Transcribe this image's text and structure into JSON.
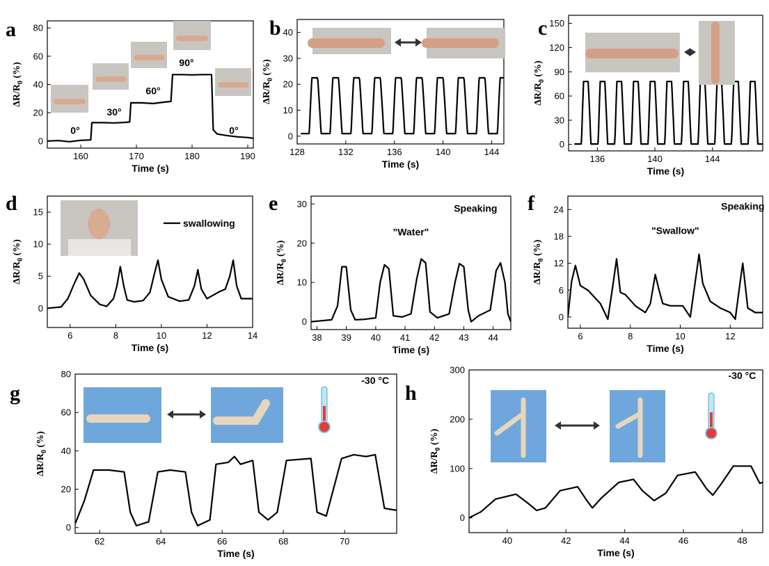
{
  "chart_data": [
    {
      "id": "a",
      "panel_label": "a",
      "type": "line",
      "xlabel": "Time (s)",
      "ylabel": "ΔR/R0 (%)",
      "xlim": [
        154,
        191
      ],
      "ylim": [
        -5,
        85
      ],
      "xticks": [
        160,
        170,
        180,
        190
      ],
      "yticks": [
        0,
        20,
        40,
        60,
        80
      ],
      "annotations": [
        {
          "text": "0°",
          "x": 159,
          "y": 5
        },
        {
          "text": "30°",
          "x": 166,
          "y": 18
        },
        {
          "text": "60°",
          "x": 173,
          "y": 33
        },
        {
          "text": "90°",
          "x": 179,
          "y": 53
        },
        {
          "text": "0°",
          "x": 187.5,
          "y": 5
        }
      ],
      "series": [
        {
          "x": [
            154,
            156,
            158,
            160,
            161.8,
            162,
            164,
            166,
            168,
            168.8,
            169,
            171,
            173,
            175,
            176.2,
            176.5,
            178,
            180,
            182,
            183.5,
            183.8,
            184.5,
            186,
            188,
            190,
            191
          ],
          "y": [
            0,
            0.3,
            -0.5,
            0.5,
            0.8,
            13,
            13,
            12.8,
            13.2,
            13.5,
            27,
            27,
            26.5,
            27.5,
            28,
            47,
            47,
            46.8,
            47,
            47,
            8,
            5,
            4,
            3,
            2.5,
            2
          ]
        }
      ]
    },
    {
      "id": "b",
      "panel_label": "b",
      "type": "line",
      "xlabel": "Time (s)",
      "ylabel": "ΔR/R0 (%)",
      "xlim": [
        128,
        145
      ],
      "ylim": [
        -3,
        45
      ],
      "xticks": [
        128,
        132,
        136,
        140,
        144
      ],
      "yticks": [
        0,
        10,
        20,
        30,
        40
      ],
      "series": [
        {
          "generator": "periodic",
          "start": 128.3,
          "end": 145,
          "period": 1.72,
          "phase": 129.0,
          "low": 1.0,
          "high": 22.5
        }
      ]
    },
    {
      "id": "c",
      "panel_label": "c",
      "type": "line",
      "xlabel": "Time (s)",
      "ylabel": "ΔR/R0 (%)",
      "xlim": [
        134,
        147.5
      ],
      "ylim": [
        -8,
        160
      ],
      "xticks": [
        136,
        140,
        144
      ],
      "yticks": [
        0,
        30,
        60,
        90,
        120,
        150
      ],
      "series": [
        {
          "generator": "periodic",
          "start": 134.4,
          "end": 147.5,
          "period": 1.16,
          "phase": 134.9,
          "low": 0.5,
          "high": 78
        }
      ]
    },
    {
      "id": "d",
      "panel_label": "d",
      "type": "line",
      "xlabel": "Time (s)",
      "ylabel": "ΔR/R0 (%)",
      "xlim": [
        5,
        14
      ],
      "ylim": [
        -3,
        17.5
      ],
      "xticks": [
        6,
        8,
        10,
        12,
        14
      ],
      "yticks": [
        0,
        5,
        10,
        15
      ],
      "legend": {
        "label": "swallowing",
        "position": "top-right"
      },
      "series": [
        {
          "x": [
            5,
            5.6,
            5.9,
            6.2,
            6.4,
            6.6,
            6.9,
            7.3,
            7.6,
            7.9,
            8.05,
            8.2,
            8.35,
            8.5,
            8.8,
            9.2,
            9.5,
            9.7,
            9.85,
            10.0,
            10.3,
            10.8,
            11.2,
            11.45,
            11.6,
            11.75,
            12.0,
            12.5,
            12.8,
            13.0,
            13.15,
            13.3,
            13.5,
            14
          ],
          "y": [
            0,
            0.2,
            1.5,
            4,
            5.5,
            4.5,
            2,
            0.6,
            0.3,
            1.5,
            3.5,
            6.5,
            3.5,
            1.3,
            1,
            1.2,
            2.5,
            5.5,
            7.5,
            4.5,
            1.8,
            1.1,
            1.3,
            3.5,
            6,
            3,
            1.5,
            2.5,
            3,
            5,
            7.5,
            3.5,
            1.5,
            1.5
          ]
        }
      ]
    },
    {
      "id": "e",
      "panel_label": "e",
      "type": "line",
      "xlabel": "Time (s)",
      "ylabel": "ΔR/R0 (%)",
      "xlim": [
        37.8,
        44.6
      ],
      "ylim": [
        -2,
        32
      ],
      "xticks": [
        38,
        39,
        40,
        41,
        42,
        43,
        44
      ],
      "yticks": [
        0,
        10,
        20,
        30
      ],
      "annotations": [
        {
          "text": "Speaking",
          "x": 43.4,
          "y": 28
        },
        {
          "text": "\"Water\"",
          "x": 41.2,
          "y": 22
        }
      ],
      "series": [
        {
          "x": [
            37.8,
            38.5,
            38.7,
            38.85,
            39.0,
            39.15,
            39.3,
            39.6,
            40.0,
            40.15,
            40.3,
            40.45,
            40.6,
            40.9,
            41.2,
            41.4,
            41.55,
            41.7,
            41.85,
            42.1,
            42.5,
            42.7,
            42.85,
            43.0,
            43.15,
            43.25,
            43.5,
            43.9,
            44.1,
            44.25,
            44.4,
            44.5,
            44.6
          ],
          "y": [
            0,
            0.5,
            4,
            14,
            14,
            3,
            0.5,
            0.6,
            1,
            10,
            14.5,
            13.5,
            1.5,
            1.2,
            2,
            11,
            16,
            15,
            2.5,
            1,
            2,
            10,
            14.8,
            14,
            3,
            0,
            1.5,
            3,
            13,
            15,
            10,
            2,
            0
          ]
        }
      ]
    },
    {
      "id": "f",
      "panel_label": "f",
      "type": "line",
      "xlabel": "Time (s)",
      "ylabel": "ΔR/R0 (%)",
      "xlim": [
        5.5,
        13.3
      ],
      "ylim": [
        -2.5,
        27
      ],
      "xticks": [
        6,
        8,
        10,
        12
      ],
      "yticks": [
        0,
        6,
        12,
        18,
        24
      ],
      "annotations": [
        {
          "text": "Speaking",
          "x": 12.5,
          "y": 24
        },
        {
          "text": "\"Swallow\"",
          "x": 9.8,
          "y": 18.5
        }
      ],
      "series": [
        {
          "x": [
            5.5,
            5.65,
            5.8,
            6.0,
            6.3,
            6.8,
            7.1,
            7.3,
            7.45,
            7.6,
            7.8,
            8.2,
            8.6,
            8.8,
            9.0,
            9.15,
            9.3,
            9.6,
            10.1,
            10.4,
            10.6,
            10.75,
            10.9,
            11.2,
            11.6,
            12.0,
            12.2,
            12.4,
            12.5,
            12.7,
            13.0,
            13.3
          ],
          "y": [
            0,
            8,
            11.5,
            7,
            6,
            3,
            -0.5,
            7,
            13,
            5.5,
            5,
            2.5,
            1,
            3,
            9.5,
            6,
            3,
            2.5,
            2.5,
            0,
            8,
            14,
            7.5,
            3.5,
            2,
            1,
            -0.5,
            8,
            12,
            2,
            1,
            1
          ]
        }
      ]
    },
    {
      "id": "g",
      "panel_label": "g",
      "type": "line",
      "xlabel": "Time (s)",
      "ylabel": "ΔR/R0 (%)",
      "xlim": [
        61.2,
        71.7
      ],
      "ylim": [
        -3,
        80
      ],
      "xticks": [
        62,
        64,
        66,
        68,
        70
      ],
      "yticks": [
        0,
        20,
        40,
        60,
        80
      ],
      "annotations": [
        {
          "text": "-30 °C",
          "x": 71,
          "y": 75
        }
      ],
      "series": [
        {
          "x": [
            61.2,
            61.5,
            61.8,
            62.3,
            62.8,
            63.0,
            63.2,
            63.6,
            63.9,
            64.3,
            64.8,
            65.0,
            65.2,
            65.6,
            65.8,
            66.2,
            66.4,
            66.6,
            67.0,
            67.2,
            67.5,
            67.8,
            68.1,
            68.9,
            69.1,
            69.4,
            69.9,
            70.3,
            70.7,
            71.0,
            71.3,
            71.7
          ],
          "y": [
            2,
            14,
            30,
            30,
            29,
            8,
            1,
            3,
            29,
            30,
            29,
            8,
            1,
            4,
            33,
            34,
            37,
            33,
            35,
            8,
            4,
            8,
            35,
            36,
            8,
            6,
            36,
            38,
            37,
            38,
            10,
            9
          ]
        }
      ]
    },
    {
      "id": "h",
      "panel_label": "h",
      "type": "line",
      "xlabel": "Time (s)",
      "ylabel": "ΔR/R0 (%)",
      "xlim": [
        38.7,
        48.7
      ],
      "ylim": [
        -30,
        300
      ],
      "xticks": [
        40,
        42,
        44,
        46,
        48
      ],
      "yticks": [
        0,
        100,
        200,
        300
      ],
      "annotations": [
        {
          "text": "-30 °C",
          "x": 48,
          "y": 282
        }
      ],
      "series": [
        {
          "x": [
            38.7,
            39.1,
            39.6,
            40.3,
            40.7,
            41.0,
            41.3,
            41.8,
            42.4,
            42.7,
            42.9,
            43.2,
            43.8,
            44.3,
            44.6,
            45.0,
            45.4,
            45.8,
            46.4,
            46.8,
            47.0,
            47.3,
            47.7,
            48.3,
            48.6,
            48.7
          ],
          "y": [
            0,
            12,
            38,
            48,
            30,
            15,
            20,
            55,
            63,
            36,
            20,
            40,
            72,
            78,
            55,
            35,
            50,
            86,
            93,
            58,
            46,
            70,
            105,
            105,
            70,
            72
          ]
        }
      ]
    }
  ]
}
